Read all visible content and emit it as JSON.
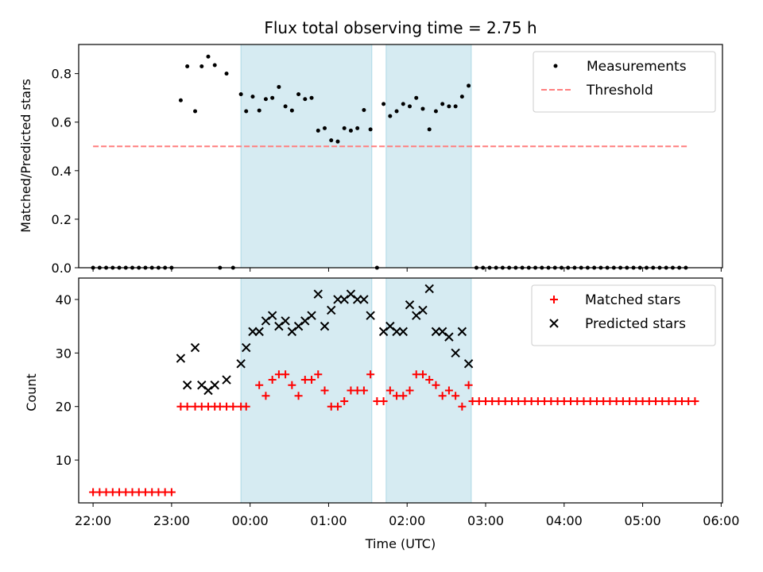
{
  "chart_data": [
    {
      "type": "scatter",
      "title": "Flux total observing time = 2.75 h",
      "ylabel": "Matched/Predicted stars",
      "ylim": [
        0,
        0.92
      ],
      "yticks": [
        "0.0",
        "0.2",
        "0.4",
        "0.6",
        "0.8"
      ],
      "ytick_values": [
        0.0,
        0.2,
        0.4,
        0.6,
        0.8
      ],
      "legend": {
        "position": "top-right",
        "entries": [
          "Measurements",
          "Threshold"
        ]
      },
      "shaded_intervals": [
        [
          "23:53",
          "01:33"
        ],
        [
          "01:44",
          "02:49"
        ]
      ],
      "threshold": {
        "name": "Threshold",
        "value": 0.5,
        "x_start": "22:00",
        "x_end": "05:35",
        "color": "#ff7f7f",
        "style": "dashed"
      },
      "series": [
        {
          "name": "Measurements",
          "color": "#000000",
          "marker": "dot",
          "points": [
            [
              "22:00",
              0
            ],
            [
              "22:05",
              0
            ],
            [
              "22:10",
              0
            ],
            [
              "22:15",
              0
            ],
            [
              "22:20",
              0
            ],
            [
              "22:25",
              0
            ],
            [
              "22:30",
              0
            ],
            [
              "22:35",
              0
            ],
            [
              "22:40",
              0
            ],
            [
              "22:45",
              0
            ],
            [
              "22:50",
              0
            ],
            [
              "22:55",
              0
            ],
            [
              "23:00",
              0
            ],
            [
              "23:07",
              0.69
            ],
            [
              "23:12",
              0.83
            ],
            [
              "23:18",
              0.645
            ],
            [
              "23:23",
              0.83
            ],
            [
              "23:28",
              0.87
            ],
            [
              "23:33",
              0.835
            ],
            [
              "23:37",
              0
            ],
            [
              "23:42",
              0.8
            ],
            [
              "23:47",
              0
            ],
            [
              "23:53",
              0.715
            ],
            [
              "23:57",
              0.645
            ],
            [
              "00:02",
              0.705
            ],
            [
              "00:07",
              0.648
            ],
            [
              "00:12",
              0.695
            ],
            [
              "00:17",
              0.7
            ],
            [
              "00:22",
              0.745
            ],
            [
              "00:27",
              0.665
            ],
            [
              "00:32",
              0.648
            ],
            [
              "00:37",
              0.715
            ],
            [
              "00:42",
              0.695
            ],
            [
              "00:47",
              0.7
            ],
            [
              "00:52",
              0.565
            ],
            [
              "00:57",
              0.575
            ],
            [
              "01:02",
              0.525
            ],
            [
              "01:07",
              0.52
            ],
            [
              "01:12",
              0.575
            ],
            [
              "01:17",
              0.565
            ],
            [
              "01:22",
              0.575
            ],
            [
              "01:27",
              0.65
            ],
            [
              "01:32",
              0.57
            ],
            [
              "01:37",
              0
            ],
            [
              "01:42",
              0.675
            ],
            [
              "01:47",
              0.625
            ],
            [
              "01:52",
              0.645
            ],
            [
              "01:57",
              0.675
            ],
            [
              "02:02",
              0.665
            ],
            [
              "02:07",
              0.7
            ],
            [
              "02:12",
              0.655
            ],
            [
              "02:17",
              0.57
            ],
            [
              "02:22",
              0.645
            ],
            [
              "02:27",
              0.675
            ],
            [
              "02:32",
              0.665
            ],
            [
              "02:37",
              0.665
            ],
            [
              "02:42",
              0.705
            ],
            [
              "02:47",
              0.75
            ],
            [
              "02:53",
              0
            ],
            [
              "02:58",
              0
            ],
            [
              "03:03",
              0
            ],
            [
              "03:08",
              0
            ],
            [
              "03:13",
              0
            ],
            [
              "03:18",
              0
            ],
            [
              "03:23",
              0
            ],
            [
              "03:28",
              0
            ],
            [
              "03:33",
              0
            ],
            [
              "03:38",
              0
            ],
            [
              "03:43",
              0
            ],
            [
              "03:48",
              0
            ],
            [
              "03:53",
              0
            ],
            [
              "03:58",
              0
            ],
            [
              "04:03",
              0
            ],
            [
              "04:08",
              0
            ],
            [
              "04:13",
              0
            ],
            [
              "04:18",
              0
            ],
            [
              "04:23",
              0
            ],
            [
              "04:28",
              0
            ],
            [
              "04:33",
              0
            ],
            [
              "04:38",
              0
            ],
            [
              "04:43",
              0
            ],
            [
              "04:48",
              0
            ],
            [
              "04:53",
              0
            ],
            [
              "04:58",
              0
            ],
            [
              "05:03",
              0
            ],
            [
              "05:08",
              0
            ],
            [
              "05:13",
              0
            ],
            [
              "05:18",
              0
            ],
            [
              "05:23",
              0
            ],
            [
              "05:28",
              0
            ],
            [
              "05:33",
              0
            ]
          ]
        }
      ]
    },
    {
      "type": "scatter",
      "xlabel": "Time (UTC)",
      "ylabel": "Count",
      "xlim": [
        "21:49",
        "06:01"
      ],
      "ylim": [
        2,
        44
      ],
      "xticks": [
        "22:00",
        "23:00",
        "00:00",
        "01:00",
        "02:00",
        "03:00",
        "04:00",
        "05:00",
        "06:00"
      ],
      "yticks": [
        "10",
        "20",
        "30",
        "40"
      ],
      "ytick_values": [
        10,
        20,
        30,
        40
      ],
      "legend": {
        "position": "top-right",
        "entries": [
          "Matched stars",
          "Predicted stars"
        ]
      },
      "shaded_intervals": [
        [
          "23:53",
          "01:33"
        ],
        [
          "01:44",
          "02:49"
        ]
      ],
      "series": [
        {
          "name": "Matched stars",
          "color": "#ff0000",
          "marker": "plus",
          "points": [
            [
              "22:00",
              4
            ],
            [
              "22:05",
              4
            ],
            [
              "22:10",
              4
            ],
            [
              "22:15",
              4
            ],
            [
              "22:20",
              4
            ],
            [
              "22:25",
              4
            ],
            [
              "22:30",
              4
            ],
            [
              "22:35",
              4
            ],
            [
              "22:40",
              4
            ],
            [
              "22:45",
              4
            ],
            [
              "22:50",
              4
            ],
            [
              "22:55",
              4
            ],
            [
              "23:00",
              4
            ],
            [
              "23:07",
              20
            ],
            [
              "23:12",
              20
            ],
            [
              "23:18",
              20
            ],
            [
              "23:23",
              20
            ],
            [
              "23:28",
              20
            ],
            [
              "23:33",
              20
            ],
            [
              "23:37",
              20
            ],
            [
              "23:42",
              20
            ],
            [
              "23:47",
              20
            ],
            [
              "23:53",
              20
            ],
            [
              "23:57",
              20
            ],
            [
              "00:07",
              24
            ],
            [
              "00:12",
              22
            ],
            [
              "00:17",
              25
            ],
            [
              "00:22",
              26
            ],
            [
              "00:27",
              26
            ],
            [
              "00:32",
              24
            ],
            [
              "00:37",
              22
            ],
            [
              "00:42",
              25
            ],
            [
              "00:47",
              25
            ],
            [
              "00:52",
              26
            ],
            [
              "00:57",
              23
            ],
            [
              "01:02",
              20
            ],
            [
              "01:07",
              20
            ],
            [
              "01:12",
              21
            ],
            [
              "01:17",
              23
            ],
            [
              "01:22",
              23
            ],
            [
              "01:27",
              23
            ],
            [
              "01:32",
              26
            ],
            [
              "01:37",
              21
            ],
            [
              "01:42",
              21
            ],
            [
              "01:47",
              23
            ],
            [
              "01:52",
              22
            ],
            [
              "01:57",
              22
            ],
            [
              "02:02",
              23
            ],
            [
              "02:07",
              26
            ],
            [
              "02:12",
              26
            ],
            [
              "02:17",
              25
            ],
            [
              "02:22",
              24
            ],
            [
              "02:27",
              22
            ],
            [
              "02:32",
              23
            ],
            [
              "02:37",
              22
            ],
            [
              "02:42",
              20
            ],
            [
              "02:47",
              24
            ],
            [
              "02:50",
              21
            ],
            [
              "02:55",
              21
            ],
            [
              "03:00",
              21
            ],
            [
              "03:05",
              21
            ],
            [
              "03:10",
              21
            ],
            [
              "03:15",
              21
            ],
            [
              "03:20",
              21
            ],
            [
              "03:25",
              21
            ],
            [
              "03:30",
              21
            ],
            [
              "03:35",
              21
            ],
            [
              "03:40",
              21
            ],
            [
              "03:45",
              21
            ],
            [
              "03:50",
              21
            ],
            [
              "03:55",
              21
            ],
            [
              "04:00",
              21
            ],
            [
              "04:05",
              21
            ],
            [
              "04:10",
              21
            ],
            [
              "04:15",
              21
            ],
            [
              "04:20",
              21
            ],
            [
              "04:25",
              21
            ],
            [
              "04:30",
              21
            ],
            [
              "04:35",
              21
            ],
            [
              "04:40",
              21
            ],
            [
              "04:45",
              21
            ],
            [
              "04:50",
              21
            ],
            [
              "04:55",
              21
            ],
            [
              "05:00",
              21
            ],
            [
              "05:05",
              21
            ],
            [
              "05:10",
              21
            ],
            [
              "05:15",
              21
            ],
            [
              "05:20",
              21
            ],
            [
              "05:25",
              21
            ],
            [
              "05:30",
              21
            ],
            [
              "05:35",
              21
            ],
            [
              "05:40",
              21
            ]
          ]
        },
        {
          "name": "Predicted stars",
          "color": "#000000",
          "marker": "x",
          "points": [
            [
              "23:07",
              29
            ],
            [
              "23:12",
              24
            ],
            [
              "23:18",
              31
            ],
            [
              "23:23",
              24
            ],
            [
              "23:28",
              23
            ],
            [
              "23:33",
              24
            ],
            [
              "23:42",
              25
            ],
            [
              "23:53",
              28
            ],
            [
              "23:57",
              31
            ],
            [
              "00:02",
              34
            ],
            [
              "00:07",
              34
            ],
            [
              "00:12",
              36
            ],
            [
              "00:17",
              37
            ],
            [
              "00:22",
              35
            ],
            [
              "00:27",
              36
            ],
            [
              "00:32",
              34
            ],
            [
              "00:37",
              35
            ],
            [
              "00:42",
              36
            ],
            [
              "00:47",
              37
            ],
            [
              "00:52",
              41
            ],
            [
              "00:57",
              35
            ],
            [
              "01:02",
              38
            ],
            [
              "01:07",
              40
            ],
            [
              "01:12",
              40
            ],
            [
              "01:17",
              41
            ],
            [
              "01:22",
              40
            ],
            [
              "01:27",
              40
            ],
            [
              "01:32",
              37
            ],
            [
              "01:42",
              34
            ],
            [
              "01:47",
              35
            ],
            [
              "01:52",
              34
            ],
            [
              "01:57",
              34
            ],
            [
              "02:02",
              39
            ],
            [
              "02:07",
              37
            ],
            [
              "02:12",
              38
            ],
            [
              "02:17",
              42
            ],
            [
              "02:22",
              34
            ],
            [
              "02:27",
              34
            ],
            [
              "02:32",
              33
            ],
            [
              "02:37",
              30
            ],
            [
              "02:42",
              34
            ],
            [
              "02:47",
              28
            ]
          ]
        }
      ]
    }
  ]
}
